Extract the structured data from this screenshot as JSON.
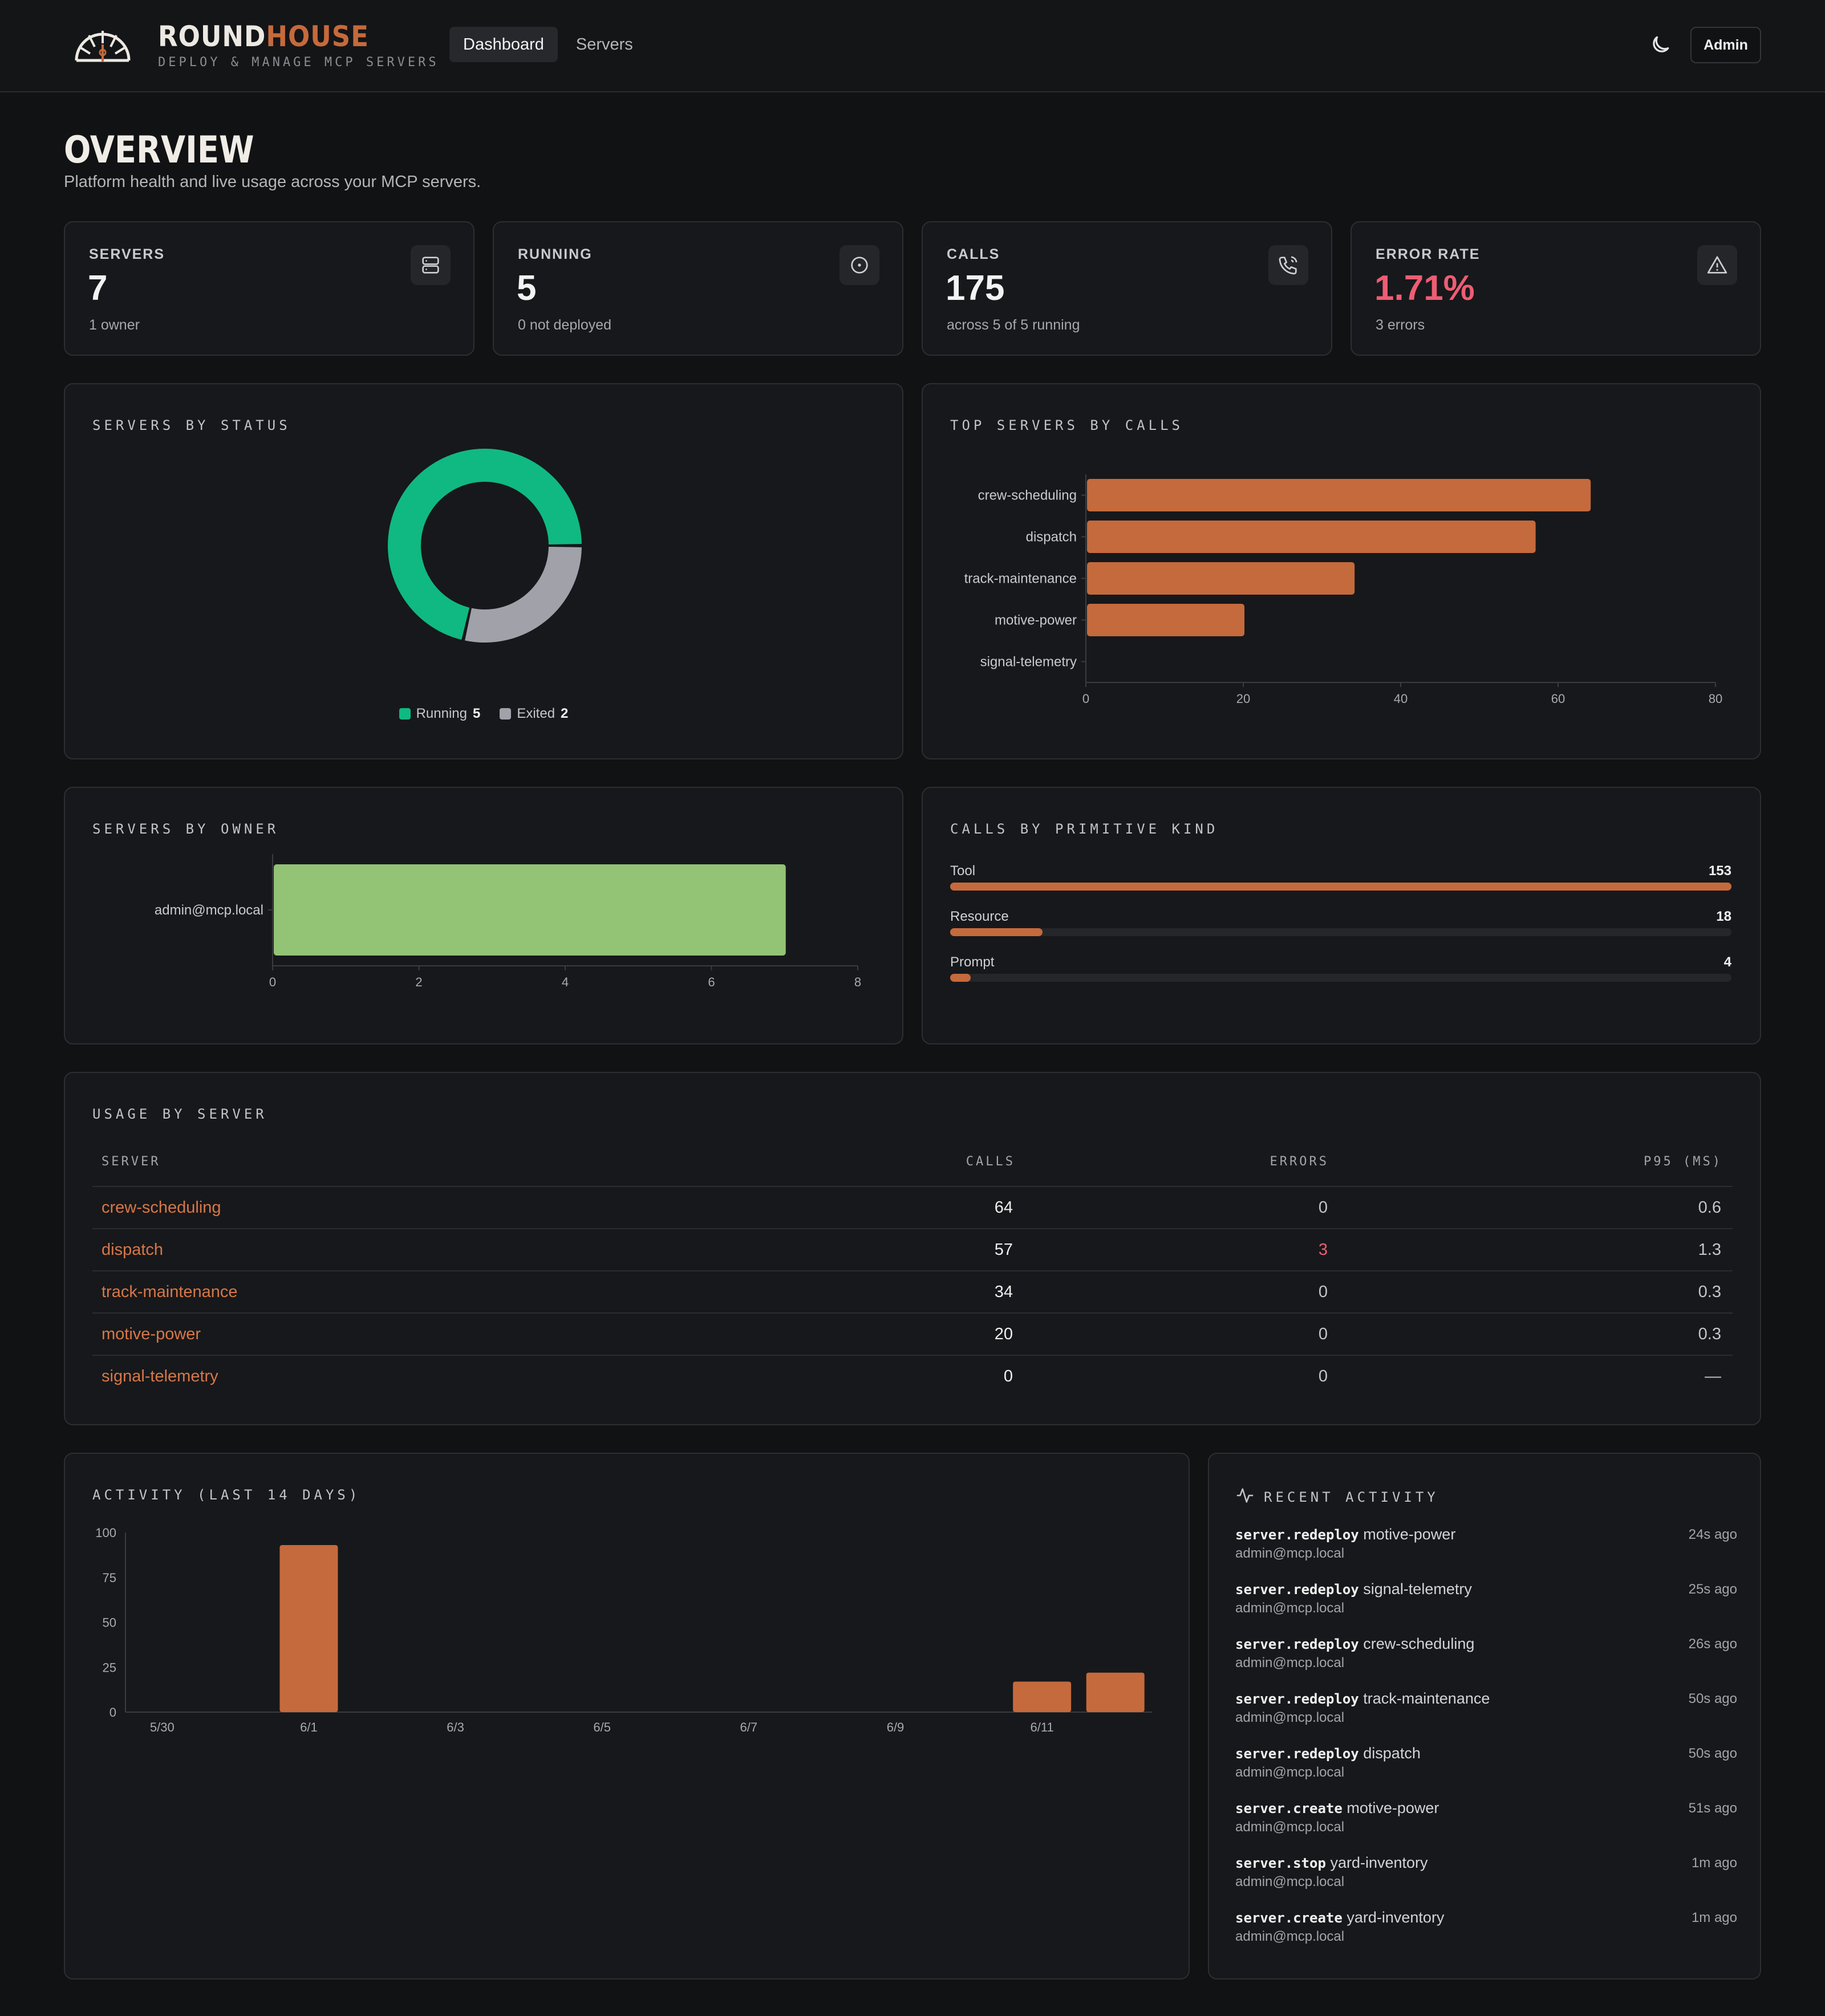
{
  "header": {
    "brand_a": "ROUND",
    "brand_b": "HOUSE",
    "tagline": "DEPLOY & MANAGE MCP SERVERS",
    "tabs": [
      {
        "label": "Dashboard"
      },
      {
        "label": "Servers"
      }
    ],
    "admin_label": "Admin",
    "theme_icon": "moon-icon"
  },
  "page": {
    "title": "OVERVIEW",
    "subtitle": "Platform health and live usage across your MCP servers."
  },
  "stats": [
    {
      "label": "SERVERS",
      "value": "7",
      "sub": "1 owner",
      "icon": "server-icon"
    },
    {
      "label": "RUNNING",
      "value": "5",
      "sub": "0 not deployed",
      "icon": "circle-dot-icon"
    },
    {
      "label": "CALLS",
      "value": "175",
      "sub": "across 5 of 5 running",
      "icon": "phone-icon"
    },
    {
      "label": "ERROR RATE",
      "value": "1.71%",
      "sub": "3 errors",
      "icon": "warning-icon",
      "color": "#ee5d73"
    }
  ],
  "status_panel": {
    "title": "SERVERS BY STATUS",
    "legend": [
      {
        "label": "Running",
        "value": "5",
        "color": "#10b981"
      },
      {
        "label": "Exited",
        "value": "2",
        "color": "#a1a1aa"
      }
    ]
  },
  "top_panel": {
    "title": "TOP SERVERS BY CALLS"
  },
  "owner_panel": {
    "title": "SERVERS BY OWNER"
  },
  "primitive_panel": {
    "title": "CALLS BY PRIMITIVE KIND",
    "items": [
      {
        "label": "Tool",
        "value": "153",
        "fraction": 1.0
      },
      {
        "label": "Resource",
        "value": "18",
        "fraction": 0.118
      },
      {
        "label": "Prompt",
        "value": "4",
        "fraction": 0.026
      }
    ]
  },
  "usage_panel": {
    "title": "USAGE BY SERVER",
    "columns": {
      "server": "SERVER",
      "calls": "CALLS",
      "errors": "ERRORS",
      "p95": "P95 (MS)"
    },
    "rows": [
      {
        "server": "crew-scheduling",
        "calls": "64",
        "errors": "0",
        "p95": "0.6"
      },
      {
        "server": "dispatch",
        "calls": "57",
        "errors": "3",
        "p95": "1.3"
      },
      {
        "server": "track-maintenance",
        "calls": "34",
        "errors": "0",
        "p95": "0.3"
      },
      {
        "server": "motive-power",
        "calls": "20",
        "errors": "0",
        "p95": "0.3"
      },
      {
        "server": "signal-telemetry",
        "calls": "0",
        "errors": "0",
        "p95": "—"
      }
    ]
  },
  "activity_chart_panel": {
    "title": "ACTIVITY (LAST 14 DAYS)"
  },
  "recent_panel": {
    "title": "RECENT ACTIVITY",
    "icon": "activity-pulse-icon",
    "items": [
      {
        "action": "server.redeploy",
        "target": "motive-power",
        "user": "admin@mcp.local",
        "time": "24s ago"
      },
      {
        "action": "server.redeploy",
        "target": "signal-telemetry",
        "user": "admin@mcp.local",
        "time": "25s ago"
      },
      {
        "action": "server.redeploy",
        "target": "crew-scheduling",
        "user": "admin@mcp.local",
        "time": "26s ago"
      },
      {
        "action": "server.redeploy",
        "target": "track-maintenance",
        "user": "admin@mcp.local",
        "time": "50s ago"
      },
      {
        "action": "server.redeploy",
        "target": "dispatch",
        "user": "admin@mcp.local",
        "time": "50s ago"
      },
      {
        "action": "server.create",
        "target": "motive-power",
        "user": "admin@mcp.local",
        "time": "51s ago"
      },
      {
        "action": "server.stop",
        "target": "yard-inventory",
        "user": "admin@mcp.local",
        "time": "1m ago"
      },
      {
        "action": "server.create",
        "target": "yard-inventory",
        "user": "admin@mcp.local",
        "time": "1m ago"
      }
    ]
  },
  "chart_data": [
    {
      "type": "pie",
      "categories": [
        "Running",
        "Exited"
      ],
      "values": [
        5,
        2
      ],
      "colors": [
        "#10b981",
        "#a1a1aa"
      ],
      "donut": true
    },
    {
      "type": "bar",
      "orientation": "horizontal",
      "categories": [
        "crew-scheduling",
        "dispatch",
        "track-maintenance",
        "motive-power",
        "signal-telemetry"
      ],
      "values": [
        64,
        57,
        34,
        20,
        0
      ],
      "xlim": [
        0,
        80
      ],
      "xticks": [
        "0",
        "20",
        "40",
        "60",
        "80"
      ],
      "color": "#c56a3c"
    },
    {
      "type": "bar",
      "orientation": "horizontal",
      "categories": [
        "admin@mcp.local"
      ],
      "values": [
        7
      ],
      "xlim": [
        0,
        8
      ],
      "xticks": [
        "0",
        "2",
        "4",
        "6",
        "8"
      ],
      "color": "#93c374"
    },
    {
      "type": "bar",
      "categories": [
        "5/30",
        "5/31",
        "6/1",
        "6/2",
        "6/3",
        "6/4",
        "6/5",
        "6/6",
        "6/7",
        "6/8",
        "6/9",
        "6/10",
        "6/11",
        "6/12"
      ],
      "xtick_labels": [
        "5/30",
        "6/1",
        "6/3",
        "6/5",
        "6/7",
        "6/9",
        "6/11"
      ],
      "values": [
        0,
        0,
        93,
        0,
        0,
        0,
        0,
        0,
        0,
        0,
        0,
        0,
        17,
        22
      ],
      "ylim": [
        0,
        100
      ],
      "yticks": [
        "0",
        "25",
        "50",
        "75",
        "100"
      ],
      "color": "#c56a3c"
    }
  ]
}
